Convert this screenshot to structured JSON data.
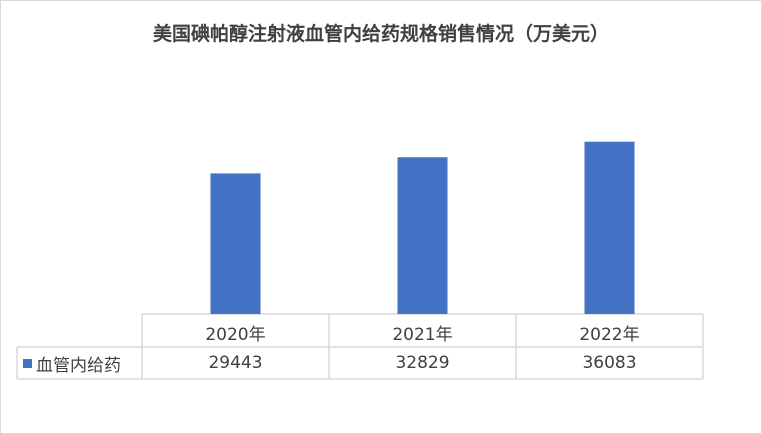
{
  "chart_data": {
    "type": "bar",
    "title": "美国碘帕醇注射液血管内给药规格销售情况（万美元）",
    "categories": [
      "2020年",
      "2021年",
      "2022年"
    ],
    "series": [
      {
        "name": "血管内给药",
        "values": [
          29443,
          32829,
          36083
        ],
        "color": "#4472c4"
      }
    ],
    "ylim": [
      0,
      40000
    ],
    "grid": false,
    "legend": "data-table",
    "data_table": true
  }
}
